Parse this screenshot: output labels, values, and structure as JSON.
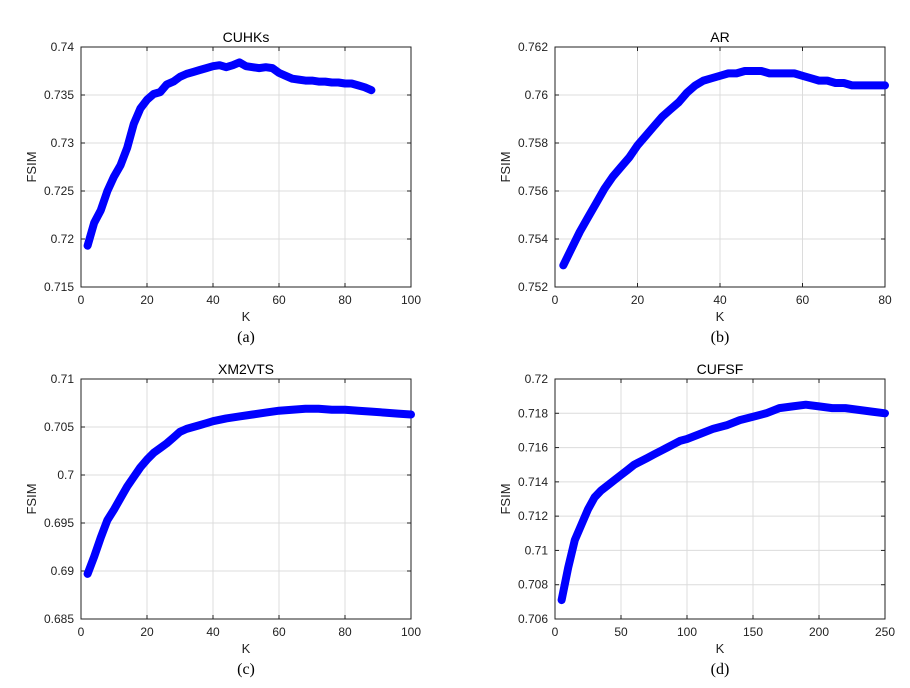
{
  "line_color": "#0000ff",
  "chart_data": [
    {
      "type": "line",
      "title": "CUHKs",
      "xlabel": "K",
      "ylabel": "FSIM",
      "caption": "(a)",
      "xlim": [
        0,
        100
      ],
      "ylim": [
        0.715,
        0.74
      ],
      "xticks": [
        0,
        20,
        40,
        60,
        80,
        100
      ],
      "yticks": [
        0.715,
        0.72,
        0.725,
        0.73,
        0.735,
        0.74
      ],
      "xtick_labels": [
        "0",
        "20",
        "40",
        "60",
        "80",
        "100"
      ],
      "ytick_labels": [
        "0.715",
        "0.72",
        "0.725",
        "0.73",
        "0.735",
        "0.74"
      ],
      "grid": true,
      "series": [
        {
          "x": [
            2,
            4,
            6,
            8,
            10,
            12,
            14,
            16,
            18,
            20,
            22,
            24,
            26,
            28,
            30,
            32,
            34,
            36,
            38,
            40,
            42,
            44,
            46,
            48,
            50,
            52,
            54,
            56,
            58,
            60,
            62,
            64,
            66,
            68,
            70,
            72,
            74,
            76,
            78,
            80,
            82,
            84,
            86,
            88
          ],
          "y": [
            0.7193,
            0.7217,
            0.723,
            0.725,
            0.7265,
            0.7277,
            0.7295,
            0.732,
            0.7336,
            0.7345,
            0.7351,
            0.7353,
            0.7361,
            0.7364,
            0.7369,
            0.7372,
            0.7374,
            0.7376,
            0.7378,
            0.738,
            0.7381,
            0.7379,
            0.7381,
            0.7384,
            0.738,
            0.7379,
            0.7378,
            0.7379,
            0.7378,
            0.7373,
            0.737,
            0.7367,
            0.7366,
            0.7365,
            0.7365,
            0.7364,
            0.7364,
            0.7363,
            0.7363,
            0.7362,
            0.7362,
            0.736,
            0.7358,
            0.7355
          ]
        }
      ]
    },
    {
      "type": "line",
      "title": "AR",
      "xlabel": "K",
      "ylabel": "FSIM",
      "caption": "(b)",
      "xlim": [
        0,
        80
      ],
      "ylim": [
        0.752,
        0.762
      ],
      "xticks": [
        0,
        20,
        40,
        60,
        80
      ],
      "yticks": [
        0.752,
        0.754,
        0.756,
        0.758,
        0.76,
        0.762
      ],
      "xtick_labels": [
        "0",
        "20",
        "40",
        "60",
        "80"
      ],
      "ytick_labels": [
        "0.752",
        "0.754",
        "0.756",
        "0.758",
        "0.76",
        "0.762"
      ],
      "grid": true,
      "series": [
        {
          "x": [
            2,
            4,
            6,
            8,
            10,
            12,
            14,
            16,
            18,
            20,
            22,
            24,
            26,
            28,
            30,
            32,
            34,
            36,
            38,
            40,
            42,
            44,
            46,
            48,
            50,
            52,
            54,
            56,
            58,
            60,
            62,
            64,
            66,
            68,
            70,
            72,
            74,
            76,
            78,
            80
          ],
          "y": [
            0.7529,
            0.7536,
            0.7543,
            0.7549,
            0.7555,
            0.7561,
            0.7566,
            0.757,
            0.7574,
            0.7579,
            0.7583,
            0.7587,
            0.7591,
            0.7594,
            0.7597,
            0.7601,
            0.7604,
            0.7606,
            0.7607,
            0.7608,
            0.7609,
            0.7609,
            0.761,
            0.761,
            0.761,
            0.7609,
            0.7609,
            0.7609,
            0.7609,
            0.7608,
            0.7607,
            0.7606,
            0.7606,
            0.7605,
            0.7605,
            0.7604,
            0.7604,
            0.7604,
            0.7604,
            0.7604
          ]
        }
      ]
    },
    {
      "type": "line",
      "title": "XM2VTS",
      "xlabel": "K",
      "ylabel": "FSIM",
      "caption": "(c)",
      "xlim": [
        0,
        100
      ],
      "ylim": [
        0.685,
        0.71
      ],
      "xticks": [
        0,
        20,
        40,
        60,
        80,
        100
      ],
      "yticks": [
        0.685,
        0.69,
        0.695,
        0.7,
        0.705,
        0.71
      ],
      "xtick_labels": [
        "0",
        "20",
        "40",
        "60",
        "80",
        "100"
      ],
      "ytick_labels": [
        "0.685",
        "0.69",
        "0.695",
        "0.7",
        "0.705",
        "0.71"
      ],
      "grid": true,
      "series": [
        {
          "x": [
            2,
            4,
            6,
            8,
            10,
            12,
            14,
            16,
            18,
            20,
            22,
            24,
            26,
            28,
            30,
            32,
            34,
            36,
            38,
            40,
            44,
            48,
            52,
            56,
            60,
            64,
            68,
            72,
            76,
            80,
            84,
            88,
            92,
            96,
            100
          ],
          "y": [
            0.6897,
            0.6915,
            0.6935,
            0.6953,
            0.6964,
            0.6976,
            0.6988,
            0.6998,
            0.7008,
            0.7016,
            0.7023,
            0.7028,
            0.7033,
            0.7039,
            0.7045,
            0.7048,
            0.705,
            0.7052,
            0.7054,
            0.7056,
            0.7059,
            0.7061,
            0.7063,
            0.7065,
            0.7067,
            0.7068,
            0.7069,
            0.7069,
            0.7068,
            0.7068,
            0.7067,
            0.7066,
            0.7065,
            0.7064,
            0.7063
          ]
        }
      ]
    },
    {
      "type": "line",
      "title": "CUFSF",
      "xlabel": "K",
      "ylabel": "FSIM",
      "caption": "(d)",
      "xlim": [
        0,
        250
      ],
      "ylim": [
        0.706,
        0.72
      ],
      "xticks": [
        0,
        50,
        100,
        150,
        200,
        250
      ],
      "yticks": [
        0.706,
        0.708,
        0.71,
        0.712,
        0.714,
        0.716,
        0.718,
        0.72
      ],
      "xtick_labels": [
        "0",
        "50",
        "100",
        "150",
        "200",
        "250"
      ],
      "ytick_labels": [
        "0.706",
        "0.708",
        "0.71",
        "0.712",
        "0.714",
        "0.716",
        "0.718",
        "0.72"
      ],
      "grid": true,
      "series": [
        {
          "x": [
            5,
            10,
            15,
            20,
            25,
            30,
            35,
            40,
            45,
            50,
            55,
            60,
            65,
            70,
            75,
            80,
            85,
            90,
            95,
            100,
            110,
            120,
            130,
            140,
            150,
            160,
            170,
            180,
            190,
            200,
            210,
            220,
            230,
            240,
            250
          ],
          "y": [
            0.7071,
            0.709,
            0.7106,
            0.7115,
            0.7124,
            0.7131,
            0.7135,
            0.7138,
            0.7141,
            0.7144,
            0.7147,
            0.715,
            0.7152,
            0.7154,
            0.7156,
            0.7158,
            0.716,
            0.7162,
            0.7164,
            0.7165,
            0.7168,
            0.7171,
            0.7173,
            0.7176,
            0.7178,
            0.718,
            0.7183,
            0.7184,
            0.7185,
            0.7184,
            0.7183,
            0.7183,
            0.7182,
            0.7181,
            0.718
          ]
        }
      ]
    }
  ]
}
